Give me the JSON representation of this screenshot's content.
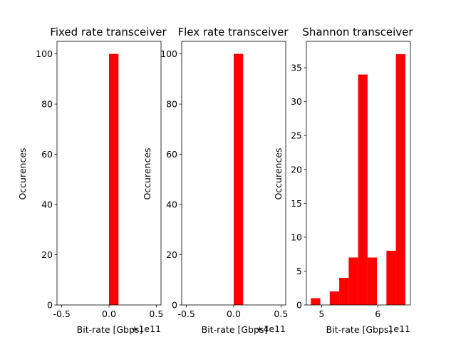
{
  "chart_data": [
    {
      "type": "histogram",
      "title": "Fixed rate transceiver",
      "xlabel": "Bit-rate [Gbps]",
      "ylabel": "Occurences",
      "x_offset_label": "+1e11",
      "xlim": [
        -0.55,
        0.55
      ],
      "ylim": [
        0,
        105
      ],
      "xticks": [
        -0.5,
        0.0,
        0.5
      ],
      "xtick_labels": [
        "-0.5",
        "0.0",
        "0.5"
      ],
      "yticks": [
        0,
        20,
        40,
        60,
        80,
        100
      ],
      "ytick_labels": [
        "0",
        "20",
        "40",
        "60",
        "80",
        "100"
      ],
      "bar_width": 0.1,
      "bars": [
        {
          "x0": 0.0,
          "x1": 0.1,
          "value": 100
        }
      ],
      "color": "#ff0000",
      "grid": false
    },
    {
      "type": "histogram",
      "title": "Flex rate transceiver",
      "xlabel": "Bit-rate [Gbps]",
      "ylabel": "Occurences",
      "x_offset_label": "+4e11",
      "xlim": [
        -0.55,
        0.55
      ],
      "ylim": [
        0,
        105
      ],
      "xticks": [
        -0.5,
        0.0,
        0.5
      ],
      "xtick_labels": [
        "-0.5",
        "0.0",
        "0.5"
      ],
      "yticks": [
        0,
        20,
        40,
        60,
        80,
        100
      ],
      "ytick_labels": [
        "0",
        "20",
        "40",
        "60",
        "80",
        "100"
      ],
      "bar_width": 0.1,
      "bars": [
        {
          "x0": 0.0,
          "x1": 0.1,
          "value": 100
        }
      ],
      "color": "#ff0000",
      "grid": false
    },
    {
      "type": "histogram",
      "title": "Shannon transceiver",
      "xlabel": "Bit-rate [Gbps]",
      "ylabel": "Occurences",
      "x_offset_label": "1e11",
      "xlim": [
        4.73,
        6.58
      ],
      "ylim": [
        0,
        38.9
      ],
      "xticks": [
        5,
        6
      ],
      "xtick_labels": [
        "5",
        "6"
      ],
      "yticks": [
        0,
        5,
        10,
        15,
        20,
        25,
        30,
        35
      ],
      "ytick_labels": [
        "0",
        "5",
        "10",
        "15",
        "20",
        "25",
        "30",
        "35"
      ],
      "bar_width": 0.168,
      "bars": [
        {
          "x0": 4.81,
          "x1": 4.978,
          "value": 1
        },
        {
          "x0": 4.978,
          "x1": 5.146,
          "value": 0
        },
        {
          "x0": 5.146,
          "x1": 5.314,
          "value": 2
        },
        {
          "x0": 5.314,
          "x1": 5.482,
          "value": 4
        },
        {
          "x0": 5.482,
          "x1": 5.65,
          "value": 7
        },
        {
          "x0": 5.65,
          "x1": 5.818,
          "value": 34
        },
        {
          "x0": 5.818,
          "x1": 5.986,
          "value": 7
        },
        {
          "x0": 5.986,
          "x1": 6.154,
          "value": 0
        },
        {
          "x0": 6.154,
          "x1": 6.322,
          "value": 8
        },
        {
          "x0": 6.322,
          "x1": 6.49,
          "value": 37
        }
      ],
      "color": "#ff0000",
      "grid": false
    }
  ]
}
